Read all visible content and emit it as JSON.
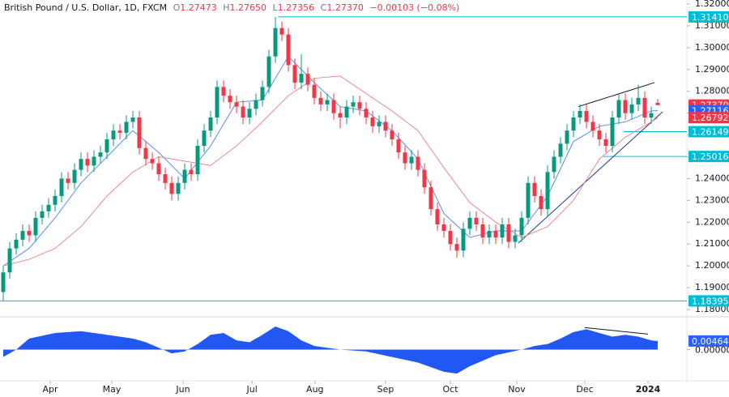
{
  "chart_data": {
    "type": "candlestick",
    "header": {
      "symbol": "British Pound / U.S. Dollar, 1D, FXCM",
      "fields": [
        {
          "key": "O",
          "value": "1.27473"
        },
        {
          "key": "H",
          "value": "1.27650"
        },
        {
          "key": "L",
          "value": "1.27356"
        },
        {
          "key": "C",
          "value": "1.27370"
        }
      ],
      "change": "−0.00103 (−0.08%)"
    },
    "up_color": "#089981",
    "down_color": "#f23645",
    "ohlc": [
      [
        1.188,
        1.2,
        1.184,
        1.197
      ],
      [
        1.197,
        1.211,
        1.194,
        1.208
      ],
      [
        1.208,
        1.215,
        1.205,
        1.212
      ],
      [
        1.212,
        1.219,
        1.209,
        1.216
      ],
      [
        1.216,
        1.219,
        1.211,
        1.214
      ],
      [
        1.214,
        1.225,
        1.211,
        1.222
      ],
      [
        1.222,
        1.228,
        1.219,
        1.225
      ],
      [
        1.225,
        1.231,
        1.222,
        1.228
      ],
      [
        1.228,
        1.235,
        1.225,
        1.232
      ],
      [
        1.232,
        1.243,
        1.229,
        1.24
      ],
      [
        1.24,
        1.243,
        1.235,
        1.238
      ],
      [
        1.238,
        1.247,
        1.235,
        1.244
      ],
      [
        1.244,
        1.252,
        1.241,
        1.249
      ],
      [
        1.249,
        1.252,
        1.243,
        1.246
      ],
      [
        1.246,
        1.253,
        1.243,
        1.25
      ],
      [
        1.25,
        1.255,
        1.247,
        1.252
      ],
      [
        1.252,
        1.261,
        1.249,
        1.258
      ],
      [
        1.258,
        1.265,
        1.255,
        1.262
      ],
      [
        1.262,
        1.265,
        1.258,
        1.261
      ],
      [
        1.261,
        1.269,
        1.258,
        1.266
      ],
      [
        1.266,
        1.271,
        1.263,
        1.268
      ],
      [
        1.268,
        1.271,
        1.251,
        1.254
      ],
      [
        1.254,
        1.257,
        1.246,
        1.249
      ],
      [
        1.249,
        1.252,
        1.244,
        1.247
      ],
      [
        1.247,
        1.25,
        1.239,
        1.242
      ],
      [
        1.242,
        1.245,
        1.235,
        1.238
      ],
      [
        1.238,
        1.241,
        1.23,
        1.233
      ],
      [
        1.233,
        1.241,
        1.23,
        1.238
      ],
      [
        1.238,
        1.247,
        1.235,
        1.244
      ],
      [
        1.244,
        1.247,
        1.239,
        1.242
      ],
      [
        1.242,
        1.258,
        1.239,
        1.255
      ],
      [
        1.255,
        1.265,
        1.252,
        1.262
      ],
      [
        1.262,
        1.271,
        1.259,
        1.268
      ],
      [
        1.268,
        1.285,
        1.265,
        1.282
      ],
      [
        1.282,
        1.285,
        1.275,
        1.278
      ],
      [
        1.278,
        1.281,
        1.272,
        1.275
      ],
      [
        1.275,
        1.278,
        1.27,
        1.273
      ],
      [
        1.273,
        1.276,
        1.265,
        1.268
      ],
      [
        1.268,
        1.275,
        1.265,
        1.272
      ],
      [
        1.272,
        1.279,
        1.269,
        1.276
      ],
      [
        1.276,
        1.285,
        1.273,
        1.282
      ],
      [
        1.282,
        1.299,
        1.279,
        1.296
      ],
      [
        1.296,
        1.3141,
        1.293,
        1.309
      ],
      [
        1.309,
        1.312,
        1.303,
        1.306
      ],
      [
        1.306,
        1.309,
        1.289,
        1.292
      ],
      [
        1.292,
        1.295,
        1.281,
        1.284
      ],
      [
        1.284,
        1.297,
        1.281,
        1.288
      ],
      [
        1.288,
        1.291,
        1.28,
        1.283
      ],
      [
        1.283,
        1.286,
        1.274,
        1.277
      ],
      [
        1.277,
        1.28,
        1.271,
        1.274
      ],
      [
        1.274,
        1.279,
        1.271,
        1.276
      ],
      [
        1.276,
        1.279,
        1.267,
        1.27
      ],
      [
        1.27,
        1.273,
        1.263,
        1.268
      ],
      [
        1.268,
        1.276,
        1.265,
        1.273
      ],
      [
        1.273,
        1.278,
        1.27,
        1.275
      ],
      [
        1.275,
        1.278,
        1.269,
        1.272
      ],
      [
        1.272,
        1.275,
        1.265,
        1.268
      ],
      [
        1.268,
        1.271,
        1.261,
        1.264
      ],
      [
        1.264,
        1.269,
        1.261,
        1.266
      ],
      [
        1.266,
        1.269,
        1.259,
        1.262
      ],
      [
        1.262,
        1.265,
        1.255,
        1.258
      ],
      [
        1.258,
        1.261,
        1.249,
        1.252
      ],
      [
        1.252,
        1.255,
        1.244,
        1.247
      ],
      [
        1.247,
        1.253,
        1.244,
        1.25
      ],
      [
        1.25,
        1.253,
        1.241,
        1.244
      ],
      [
        1.244,
        1.247,
        1.233,
        1.236
      ],
      [
        1.236,
        1.239,
        1.223,
        1.226
      ],
      [
        1.226,
        1.229,
        1.216,
        1.219
      ],
      [
        1.219,
        1.222,
        1.213,
        1.216
      ],
      [
        1.216,
        1.219,
        1.207,
        1.21
      ],
      [
        1.21,
        1.213,
        1.2037,
        1.207
      ],
      [
        1.207,
        1.22,
        1.204,
        1.217
      ],
      [
        1.217,
        1.225,
        1.214,
        1.222
      ],
      [
        1.222,
        1.225,
        1.216,
        1.219
      ],
      [
        1.219,
        1.222,
        1.21,
        1.213
      ],
      [
        1.213,
        1.219,
        1.21,
        1.216
      ],
      [
        1.216,
        1.219,
        1.21,
        1.213
      ],
      [
        1.213,
        1.222,
        1.21,
        1.219
      ],
      [
        1.219,
        1.222,
        1.208,
        1.211
      ],
      [
        1.211,
        1.217,
        1.208,
        1.214
      ],
      [
        1.214,
        1.225,
        1.211,
        1.222
      ],
      [
        1.222,
        1.241,
        1.219,
        1.238
      ],
      [
        1.238,
        1.241,
        1.229,
        1.232
      ],
      [
        1.232,
        1.235,
        1.223,
        1.226
      ],
      [
        1.226,
        1.246,
        1.223,
        1.243
      ],
      [
        1.243,
        1.253,
        1.24,
        1.25
      ],
      [
        1.25,
        1.259,
        1.247,
        1.256
      ],
      [
        1.256,
        1.265,
        1.253,
        1.262
      ],
      [
        1.262,
        1.271,
        1.259,
        1.268
      ],
      [
        1.268,
        1.274,
        1.265,
        1.271
      ],
      [
        1.271,
        1.274,
        1.263,
        1.266
      ],
      [
        1.266,
        1.269,
        1.259,
        1.262
      ],
      [
        1.262,
        1.265,
        1.255,
        1.258
      ],
      [
        1.258,
        1.261,
        1.252,
        1.255
      ],
      [
        1.255,
        1.271,
        1.252,
        1.268
      ],
      [
        1.268,
        1.279,
        1.265,
        1.276
      ],
      [
        1.276,
        1.279,
        1.267,
        1.27
      ],
      [
        1.27,
        1.277,
        1.267,
        1.274
      ],
      [
        1.274,
        1.283,
        1.271,
        1.277
      ],
      [
        1.277,
        1.28,
        1.265,
        1.268
      ],
      [
        1.268,
        1.273,
        1.265,
        1.27
      ],
      [
        1.27473,
        1.2765,
        1.27356,
        1.2737
      ]
    ],
    "xlim": [
      -0.5,
      105.5
    ],
    "xticks": [
      {
        "value": 7.25,
        "label": "Apr"
      },
      {
        "value": 16.75,
        "label": "May"
      },
      {
        "value": 27.75,
        "label": "Jun"
      },
      {
        "value": 38.4,
        "label": "Jul"
      },
      {
        "value": 48.1,
        "label": "Aug"
      },
      {
        "value": 59,
        "label": "Sep"
      },
      {
        "value": 69,
        "label": "Oct"
      },
      {
        "value": 79.25,
        "label": "Nov"
      },
      {
        "value": 89.75,
        "label": "Dec"
      },
      {
        "value": 99.5,
        "label": "2024"
      }
    ],
    "ylim": [
      1.18,
      1.32
    ],
    "yticks": [
      {
        "value": 1.18,
        "label": "1.18000"
      },
      {
        "value": 1.19,
        "label": "1.19000"
      },
      {
        "value": 1.2,
        "label": "1.20000"
      },
      {
        "value": 1.21,
        "label": "1.21000"
      },
      {
        "value": 1.22,
        "label": "1.22000"
      },
      {
        "value": 1.23,
        "label": "1.23000"
      },
      {
        "value": 1.24,
        "label": "1.24000"
      },
      {
        "value": 1.25,
        "label": "1.25000"
      },
      {
        "value": 1.26,
        "label": "1.26000"
      },
      {
        "value": 1.27,
        "label": "1.27000"
      },
      {
        "value": 1.28,
        "label": "1.28000"
      },
      {
        "value": 1.29,
        "label": "1.29000"
      },
      {
        "value": 1.3,
        "label": "1.30000"
      },
      {
        "value": 1.31,
        "label": "1.31000"
      },
      {
        "value": 1.32,
        "label": "1.32000"
      }
    ],
    "ma_lines": [
      {
        "color": "#5b8def",
        "x": [
          0,
          4,
          8,
          12,
          16,
          20,
          24,
          28,
          32,
          36,
          40,
          44,
          48,
          52,
          56,
          60,
          64,
          68,
          72,
          76,
          80,
          84,
          88,
          92,
          96,
          100,
          101
        ],
        "values": [
          1.2,
          1.208,
          1.222,
          1.238,
          1.25,
          1.262,
          1.252,
          1.24,
          1.255,
          1.275,
          1.276,
          1.296,
          1.284,
          1.273,
          1.271,
          1.262,
          1.249,
          1.224,
          1.213,
          1.216,
          1.216,
          1.232,
          1.257,
          1.264,
          1.266,
          1.271,
          1.27116
        ]
      },
      {
        "color": "#e88a8f",
        "x": [
          0,
          4,
          8,
          12,
          16,
          20,
          24,
          28,
          32,
          36,
          40,
          44,
          48,
          52,
          56,
          60,
          64,
          68,
          72,
          76,
          80,
          84,
          88,
          92,
          96,
          100,
          101
        ],
        "values": [
          1.2,
          1.203,
          1.208,
          1.218,
          1.232,
          1.243,
          1.25,
          1.248,
          1.246,
          1.255,
          1.266,
          1.278,
          1.286,
          1.287,
          1.279,
          1.271,
          1.262,
          1.245,
          1.229,
          1.22,
          1.213,
          1.218,
          1.23,
          1.249,
          1.259,
          1.266,
          1.26792
        ]
      }
    ],
    "levels": [
      {
        "value": 1.3141,
        "label": "1.31410",
        "start": 42.4,
        "color": "#00bcd4"
      },
      {
        "value": 1.26149,
        "label": "1.26149",
        "start": 95.7,
        "color": "#00bcd4"
      },
      {
        "value": 1.25016,
        "label": "1.25016",
        "start": 92.6,
        "color": "#00bcd4"
      },
      {
        "value": 1.18395,
        "label": "1.18395",
        "start": -0.5,
        "color": "#00bcd4"
      }
    ],
    "price_tags": [
      {
        "value": 1.2737,
        "label": "1.27370",
        "color": "#f23645"
      },
      {
        "value": 1.27116,
        "label": "1.27116",
        "color": "#2962ff"
      },
      {
        "value": 1.26792,
        "label": "1.26792",
        "color": "#f23645"
      }
    ],
    "trendlines": [
      {
        "x": [
          88.75,
          100.5
        ],
        "y": [
          1.273,
          1.284
        ],
        "color": "#131722"
      },
      {
        "x": [
          79.5,
          101.75
        ],
        "y": [
          1.2105,
          1.2706
        ],
        "color": "#1e3a8a"
      }
    ],
    "oscillator": {
      "color": "#2157f3",
      "x": [
        0,
        2,
        4,
        8,
        12,
        16,
        20,
        22,
        24,
        26,
        28,
        30,
        32,
        34,
        36,
        38,
        40,
        42,
        44,
        46,
        48,
        52,
        56,
        60,
        64,
        68,
        70,
        72,
        76,
        80,
        82,
        84,
        86,
        88,
        90,
        92,
        94,
        96,
        98,
        100,
        101
      ],
      "values": [
        -0.004,
        0,
        0.006,
        0.009,
        0.01,
        0.008,
        0.006,
        0.004,
        0.001,
        -0.002,
        -0.001,
        0.003,
        0.008,
        0.009,
        0.005,
        0.004,
        0.008,
        0.0125,
        0.01,
        0.005,
        0.002,
        0,
        -0.001,
        -0.004,
        -0.007,
        -0.012,
        -0.013,
        -0.009,
        -0.003,
        0,
        0.002,
        0.003,
        0.006,
        0.0095,
        0.011,
        0.009,
        0.007,
        0.008,
        0.007,
        0.005,
        0.00464
      ],
      "ylim": [
        -0.016,
        0.016
      ],
      "yticks": [
        {
          "value": 0,
          "label": "0.00000"
        }
      ],
      "tag": {
        "value": 0.00464,
        "label": "0.00464",
        "color": "#2962ff"
      },
      "trendline": {
        "x": [
          89.75,
          99.5
        ],
        "y": [
          0.0119,
          0.0084
        ],
        "color": "#131722"
      }
    }
  }
}
